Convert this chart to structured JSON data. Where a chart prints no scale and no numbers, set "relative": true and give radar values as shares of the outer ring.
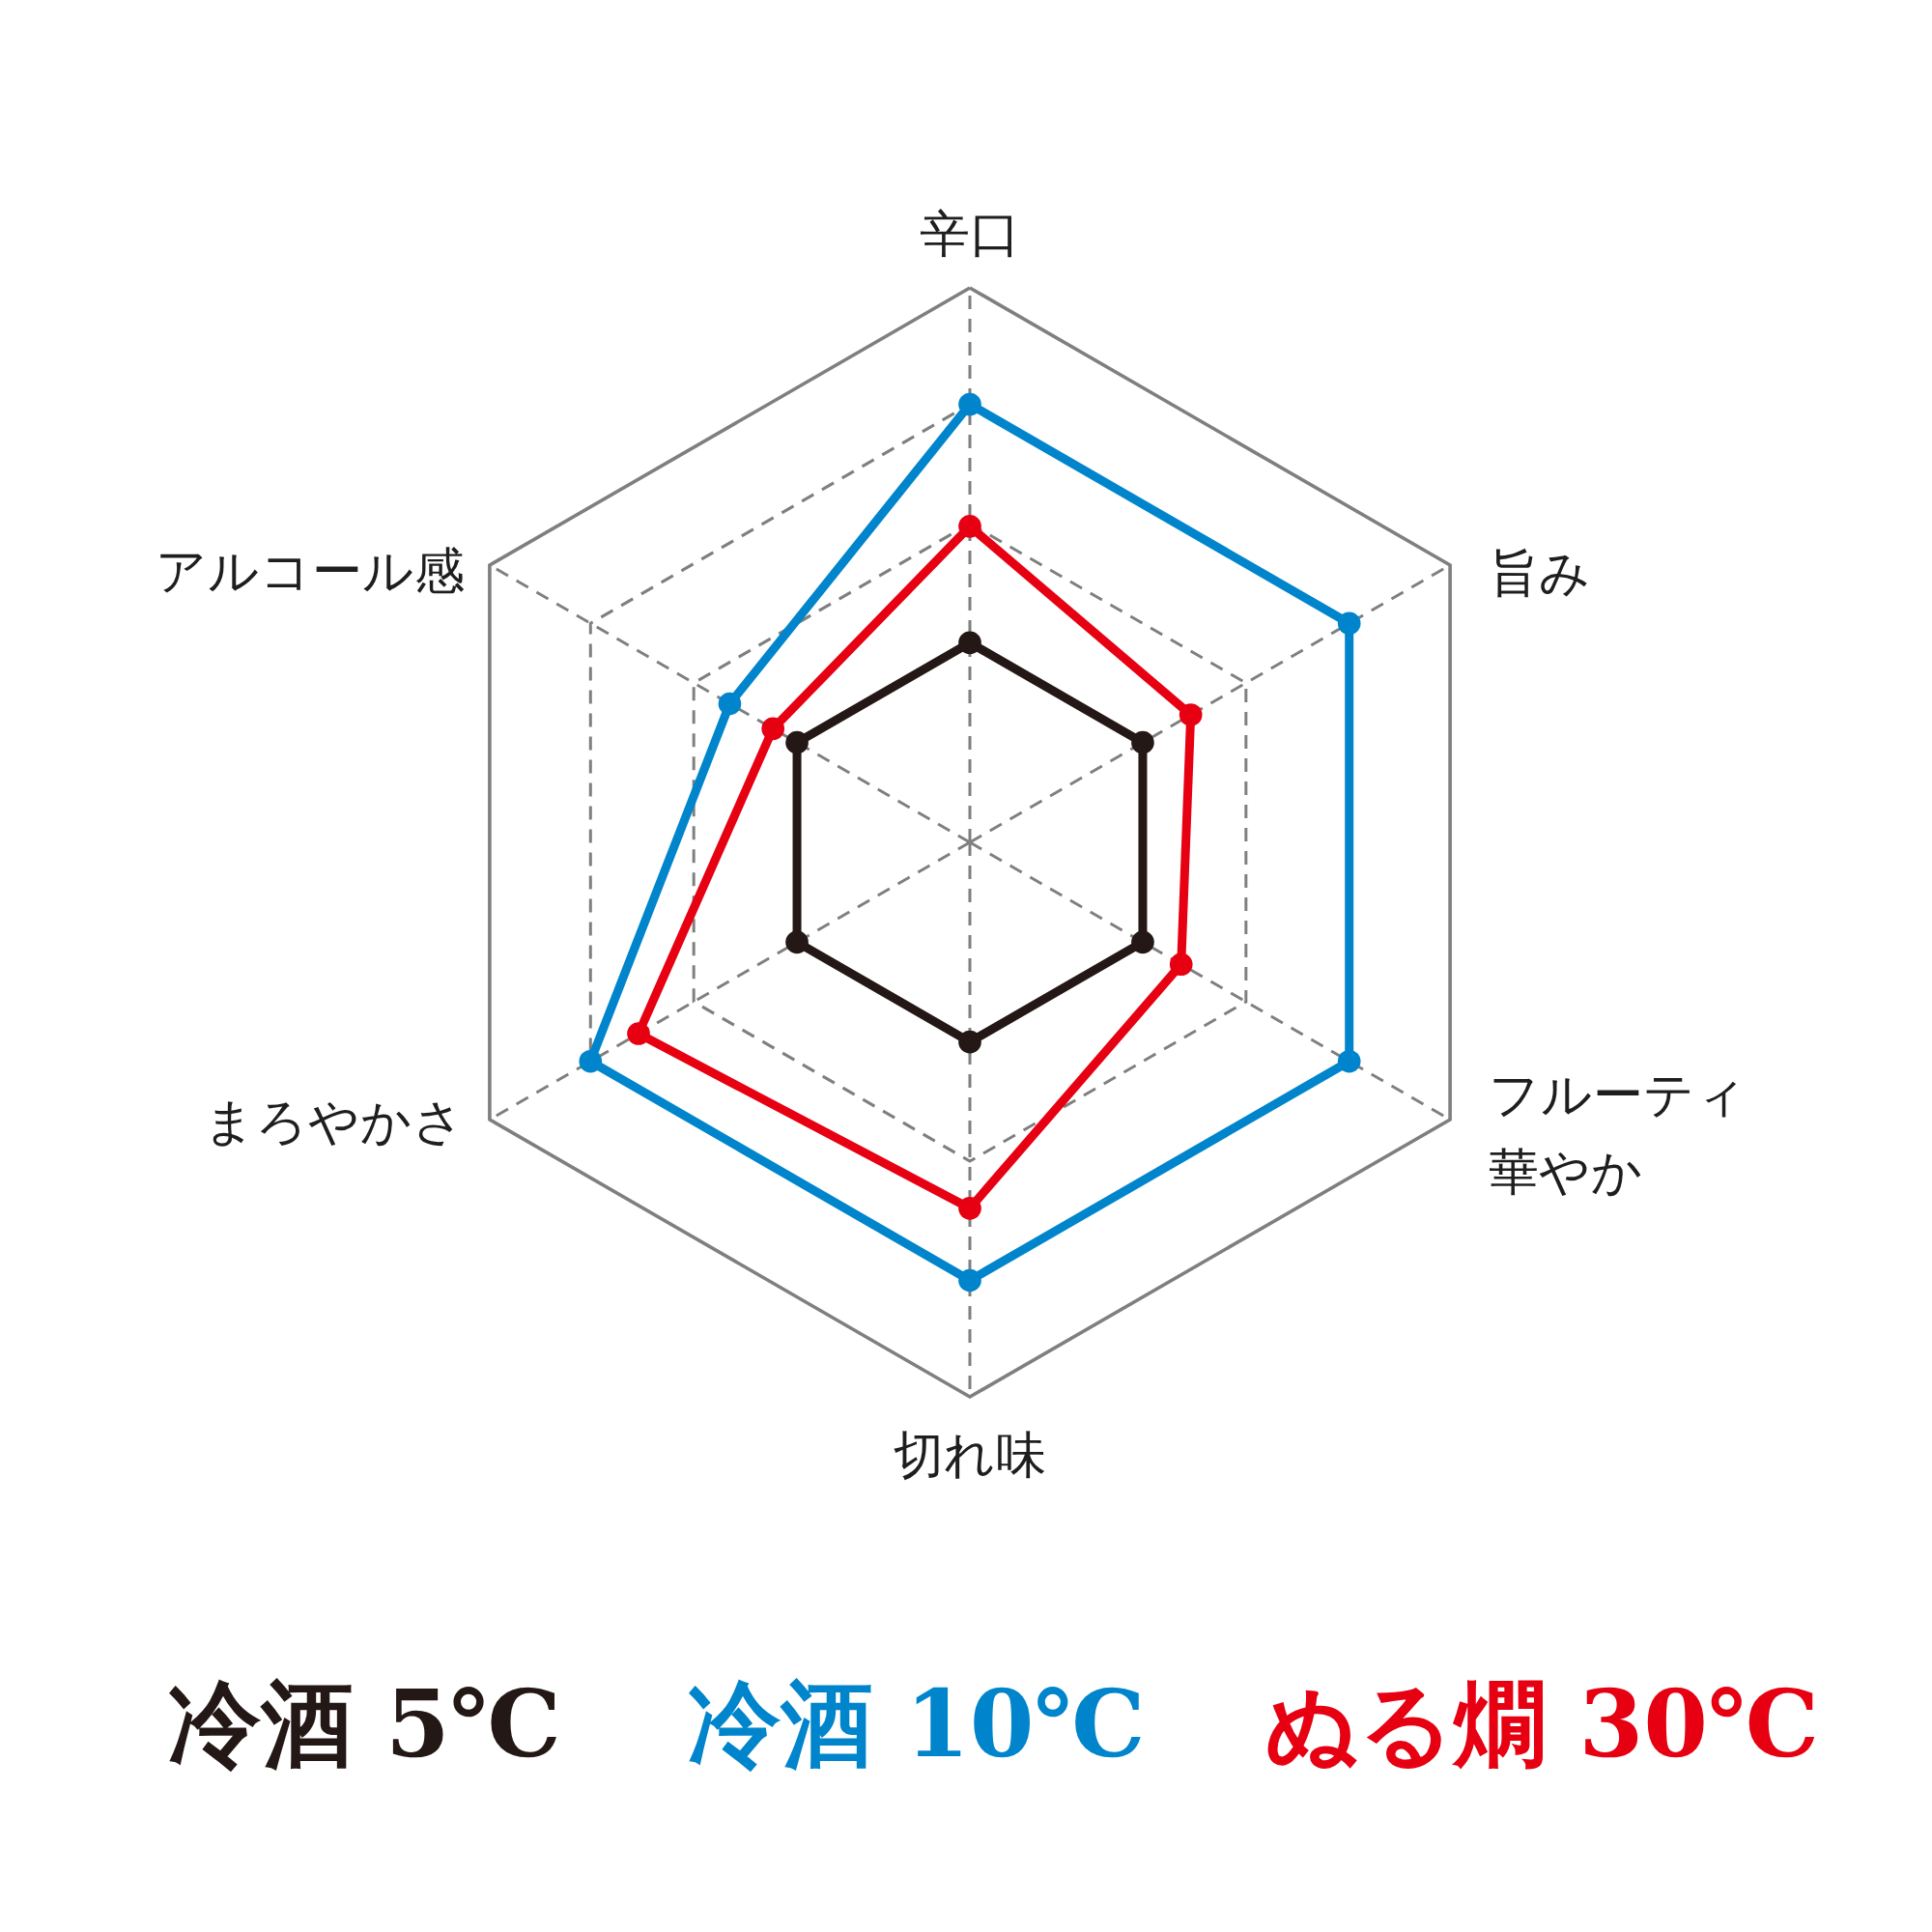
{
  "chart_data": {
    "type": "radar",
    "categories": [
      "辛口",
      "旨み",
      "フルーティ華やか",
      "切れ味",
      "まろやかさ",
      "アルコール感"
    ],
    "relative": true,
    "grid": true,
    "legend": "bottom",
    "marker": "circle",
    "line_style": "solid",
    "series": [
      {
        "name": "冷酒 5℃",
        "color": "#231815",
        "values": [
          0.36,
          0.36,
          0.36,
          0.36,
          0.36,
          0.36
        ]
      },
      {
        "name": "冷酒 10℃",
        "color": "#0085cc",
        "values": [
          0.79,
          0.79,
          0.79,
          0.79,
          0.79,
          0.5
        ]
      },
      {
        "name": "ぬる燗 30℃",
        "color": "#e60012",
        "values": [
          0.57,
          0.46,
          0.44,
          0.66,
          0.69,
          0.41
        ]
      }
    ]
  }
}
